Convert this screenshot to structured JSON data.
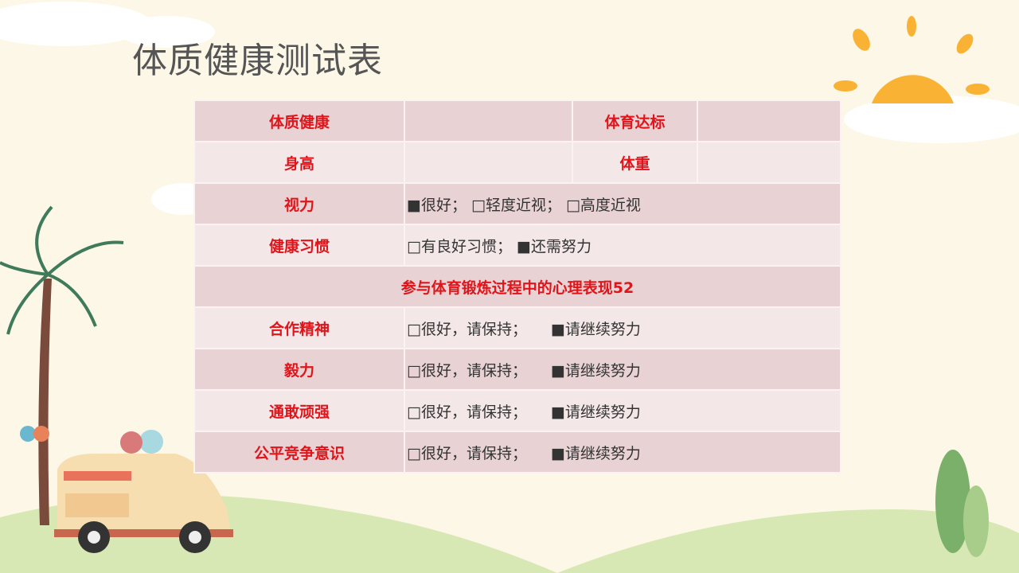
{
  "title": "体质健康测试表",
  "rows": {
    "r1": {
      "label_a": "体质健康",
      "value_a": "",
      "label_b": "体育达标",
      "value_b": ""
    },
    "r2": {
      "label_a": "身高",
      "value_a": "",
      "label_b": "体重",
      "value_b": ""
    },
    "r3": {
      "label": "视力",
      "value": "■很好； □轻度近视； □高度近视"
    },
    "r4": {
      "label": "健康习惯",
      "value": "□有良好习惯； ■还需努力"
    },
    "section": "参与体育锻炼过程中的心理表现52",
    "r6": {
      "label": "合作精神",
      "opt1": "□很好，请保持；",
      "opt2": "■请继续努力"
    },
    "r7": {
      "label": "毅力",
      "opt1": "□很好，请保持；",
      "opt2": "■请继续努力"
    },
    "r8": {
      "label": "通敢顽强",
      "opt1": "□很好，请保持；",
      "opt2": "■请继续努力"
    },
    "r9": {
      "label": "公平竞争意识",
      "opt1": "□很好，请保持；",
      "opt2": "■请继续努力"
    }
  },
  "colors": {
    "label": "#e0141a",
    "background": "#fcf7e6",
    "row_dark": "#e8d2d3",
    "row_light": "#f3e7e7"
  }
}
